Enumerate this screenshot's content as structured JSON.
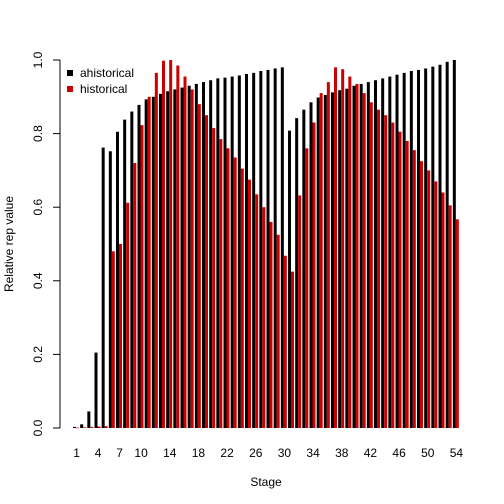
{
  "chart_data": {
    "type": "bar",
    "title": "",
    "xlabel": "Stage",
    "ylabel": "Relative rep value",
    "ylim": [
      0,
      1
    ],
    "yticks": [
      0.0,
      0.2,
      0.4,
      0.6,
      0.8,
      1.0
    ],
    "ytick_labels": [
      "0.0",
      "0.2",
      "0.4",
      "0.6",
      "0.8",
      "1.0"
    ],
    "x_tick_labels": [
      "1",
      "4",
      "7",
      "10",
      "14",
      "18",
      "22",
      "26",
      "30",
      "34",
      "38",
      "42",
      "46",
      "50",
      "54"
    ],
    "x_tick_stages": [
      1,
      4,
      7,
      10,
      14,
      18,
      22,
      26,
      30,
      34,
      38,
      42,
      46,
      50,
      54
    ],
    "grid": false,
    "legend_position": "top-left",
    "categories": [
      1,
      2,
      3,
      4,
      5,
      6,
      7,
      8,
      9,
      10,
      11,
      12,
      13,
      14,
      15,
      16,
      17,
      18,
      19,
      20,
      21,
      22,
      23,
      24,
      25,
      26,
      27,
      28,
      29,
      30,
      31,
      32,
      33,
      34,
      35,
      36,
      37,
      38,
      39,
      40,
      41,
      42,
      43,
      44,
      45,
      46,
      47,
      48,
      49,
      50,
      51,
      52,
      53,
      54
    ],
    "series": [
      {
        "name": "ahistorical",
        "color": "#000000",
        "values": [
          0.003,
          0.01,
          0.045,
          0.205,
          0.762,
          0.752,
          0.805,
          0.838,
          0.86,
          0.878,
          0.893,
          0.9,
          0.908,
          0.915,
          0.92,
          0.925,
          0.93,
          0.935,
          0.94,
          0.945,
          0.95,
          0.952,
          0.955,
          0.958,
          0.962,
          0.965,
          0.97,
          0.973,
          0.977,
          0.98,
          0.808,
          0.842,
          0.865,
          0.885,
          0.898,
          0.905,
          0.912,
          0.918,
          0.922,
          0.93,
          0.935,
          0.94,
          0.945,
          0.95,
          0.955,
          0.96,
          0.965,
          0.97,
          0.973,
          0.977,
          0.982,
          0.987,
          0.995,
          1.0
        ]
      },
      {
        "name": "historical",
        "color": "#cc0000",
        "values": [
          0.001,
          0.002,
          0.003,
          0.004,
          0.005,
          0.48,
          0.5,
          0.612,
          0.72,
          0.823,
          0.9,
          0.965,
          0.998,
          1.0,
          0.985,
          0.955,
          0.92,
          0.88,
          0.85,
          0.815,
          0.785,
          0.76,
          0.735,
          0.705,
          0.675,
          0.635,
          0.6,
          0.56,
          0.525,
          0.468,
          0.425,
          0.632,
          0.76,
          0.83,
          0.91,
          0.94,
          0.98,
          0.975,
          0.955,
          0.935,
          0.91,
          0.885,
          0.865,
          0.85,
          0.83,
          0.805,
          0.78,
          0.755,
          0.725,
          0.7,
          0.67,
          0.64,
          0.605,
          0.567
        ]
      }
    ]
  }
}
